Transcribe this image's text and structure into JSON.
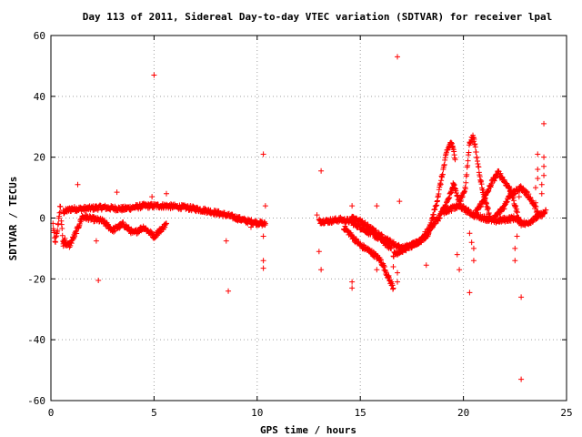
{
  "chart_data": {
    "type": "scatter",
    "title": "Day 113 of 2011, Sidereal Day-to-day VTEC variation (SDTVAR) for receiver lpal",
    "xlabel": "GPS time / hours",
    "ylabel": "SDTVAR / TECUs",
    "xlim": [
      0,
      25
    ],
    "ylim": [
      -60,
      60
    ],
    "xticks": [
      0,
      5,
      10,
      15,
      20,
      25
    ],
    "yticks": [
      -60,
      -40,
      -20,
      0,
      20,
      40,
      60
    ],
    "grid": true,
    "marker": "+",
    "marker_color": "#ff0000",
    "series": [
      {
        "bands": [
          {
            "x0": 0.1,
            "x1": 0.7,
            "dense": true,
            "pts": [
              [
                0.1,
                -2
              ],
              [
                0.2,
                -8
              ],
              [
                0.3,
                -5
              ],
              [
                0.45,
                4
              ],
              [
                0.6,
                -9
              ],
              [
                0.7,
                -6
              ]
            ]
          },
          {
            "x0": 0.6,
            "x1": 10.4,
            "dense": true,
            "pts": [
              [
                0.6,
                2
              ],
              [
                1.0,
                3
              ],
              [
                1.5,
                3
              ],
              [
                2.5,
                3.5
              ],
              [
                3.5,
                3
              ],
              [
                4.5,
                4
              ],
              [
                5.5,
                4
              ],
              [
                6.5,
                3.5
              ],
              [
                7.5,
                2.5
              ],
              [
                8.5,
                1
              ],
              [
                9.5,
                -1
              ],
              [
                10.4,
                -2
              ]
            ]
          },
          {
            "x0": 0.6,
            "x1": 1.5,
            "dense": true,
            "pts": [
              [
                0.6,
                -8
              ],
              [
                0.9,
                -9
              ],
              [
                1.2,
                -5
              ],
              [
                1.5,
                0
              ]
            ]
          },
          {
            "x0": 1.5,
            "x1": 5.6,
            "dense": true,
            "pts": [
              [
                1.5,
                0.5
              ],
              [
                2.5,
                -1
              ],
              [
                3.0,
                -4
              ],
              [
                3.5,
                -2
              ],
              [
                4.0,
                -5
              ],
              [
                4.5,
                -3
              ],
              [
                5.0,
                -6
              ],
              [
                5.6,
                -2
              ]
            ]
          },
          {
            "x0": 13.0,
            "x1": 16.5,
            "dense": true,
            "pts": [
              [
                13.0,
                -1
              ],
              [
                13.5,
                -1
              ],
              [
                14.0,
                -0.5
              ],
              [
                14.5,
                -1
              ],
              [
                15.0,
                -3
              ],
              [
                15.5,
                -5
              ],
              [
                16.0,
                -7
              ],
              [
                16.5,
                -10
              ]
            ]
          },
          {
            "x0": 14.2,
            "x1": 16.6,
            "dense": true,
            "pts": [
              [
                14.2,
                -3
              ],
              [
                15.0,
                -9
              ],
              [
                15.5,
                -11
              ],
              [
                16.0,
                -14
              ],
              [
                16.4,
                -20
              ],
              [
                16.6,
                -23
              ]
            ]
          },
          {
            "x0": 14.5,
            "x1": 18.3,
            "dense": true,
            "pts": [
              [
                14.5,
                0
              ],
              [
                15.0,
                -1
              ],
              [
                16.0,
                -6
              ],
              [
                17.0,
                -10
              ],
              [
                17.5,
                -9
              ],
              [
                18.0,
                -7
              ],
              [
                18.3,
                -5
              ]
            ]
          },
          {
            "x0": 16.6,
            "x1": 19.5,
            "dense": true,
            "pts": [
              [
                16.6,
                -12
              ],
              [
                17.2,
                -10
              ],
              [
                17.8,
                -8
              ],
              [
                18.3,
                -4
              ],
              [
                18.8,
                0
              ],
              [
                19.2,
                5
              ],
              [
                19.5,
                10
              ]
            ]
          },
          {
            "x0": 18.3,
            "x1": 19.6,
            "dense": true,
            "pts": [
              [
                18.3,
                -5
              ],
              [
                18.7,
                5
              ],
              [
                19.0,
                15
              ],
              [
                19.2,
                22
              ],
              [
                19.4,
                25
              ],
              [
                19.6,
                20
              ]
            ]
          },
          {
            "x0": 19.5,
            "x1": 20.5,
            "dense": true,
            "pts": [
              [
                19.5,
                12
              ],
              [
                19.8,
                5
              ],
              [
                20.1,
                10
              ],
              [
                20.3,
                25
              ],
              [
                20.5,
                27
              ]
            ]
          },
          {
            "x0": 20.5,
            "x1": 21.3,
            "dense": true,
            "pts": [
              [
                20.5,
                26
              ],
              [
                20.7,
                18
              ],
              [
                20.9,
                10
              ],
              [
                21.1,
                5
              ],
              [
                21.3,
                0
              ]
            ]
          },
          {
            "x0": 19.0,
            "x1": 24.0,
            "dense": true,
            "pts": [
              [
                19.0,
                2
              ],
              [
                19.8,
                4
              ],
              [
                20.5,
                1
              ],
              [
                21.5,
                -1
              ],
              [
                22.5,
                0
              ],
              [
                23.0,
                -2
              ],
              [
                23.5,
                0
              ],
              [
                24.0,
                2
              ]
            ]
          },
          {
            "x0": 20.6,
            "x1": 23.6,
            "dense": true,
            "pts": [
              [
                20.6,
                2
              ],
              [
                21.0,
                6
              ],
              [
                21.4,
                12
              ],
              [
                21.7,
                15
              ],
              [
                22.0,
                12
              ],
              [
                22.4,
                8
              ],
              [
                22.8,
                10
              ],
              [
                23.2,
                7
              ],
              [
                23.6,
                2
              ]
            ]
          },
          {
            "x0": 21.5,
            "x1": 22.8,
            "dense": true,
            "pts": [
              [
                21.5,
                0
              ],
              [
                22.0,
                4
              ],
              [
                22.3,
                9
              ],
              [
                22.6,
                2
              ],
              [
                22.8,
                -3
              ]
            ]
          }
        ],
        "outliers": [
          [
            5.0,
            47
          ],
          [
            16.8,
            53
          ],
          [
            10.3,
            21
          ],
          [
            13.1,
            15.5
          ],
          [
            1.3,
            11
          ],
          [
            3.2,
            8.5
          ],
          [
            5.6,
            8
          ],
          [
            4.9,
            7
          ],
          [
            16.9,
            5.5
          ],
          [
            2.2,
            -7.5
          ],
          [
            2.3,
            -20.5
          ],
          [
            8.5,
            -7.5
          ],
          [
            8.6,
            -24
          ],
          [
            10.3,
            -14
          ],
          [
            10.3,
            -16.5
          ],
          [
            10.3,
            -6
          ],
          [
            10.4,
            4
          ],
          [
            13.0,
            -11
          ],
          [
            13.1,
            -17
          ],
          [
            14.6,
            -21
          ],
          [
            14.6,
            -23
          ],
          [
            14.6,
            4
          ],
          [
            15.8,
            -17
          ],
          [
            15.8,
            4
          ],
          [
            16.6,
            -16
          ],
          [
            16.8,
            -18
          ],
          [
            16.8,
            -21
          ],
          [
            18.2,
            -15.5
          ],
          [
            19.7,
            -12
          ],
          [
            19.8,
            -17
          ],
          [
            20.3,
            -24.5
          ],
          [
            20.5,
            -14
          ],
          [
            20.3,
            -5
          ],
          [
            20.4,
            -8
          ],
          [
            20.5,
            -10
          ],
          [
            22.8,
            -26
          ],
          [
            22.8,
            -53
          ],
          [
            22.7,
            7
          ],
          [
            22.6,
            -6
          ],
          [
            22.5,
            -10
          ],
          [
            22.5,
            -14
          ],
          [
            23.9,
            31
          ],
          [
            23.9,
            20
          ],
          [
            23.9,
            17
          ],
          [
            23.9,
            14
          ],
          [
            23.8,
            11
          ],
          [
            23.8,
            8
          ],
          [
            23.6,
            21
          ],
          [
            23.6,
            16
          ],
          [
            23.6,
            13
          ],
          [
            23.5,
            10
          ],
          [
            23.5,
            5
          ],
          [
            9.7,
            -3
          ],
          [
            12.9,
            1
          ]
        ]
      }
    ]
  }
}
